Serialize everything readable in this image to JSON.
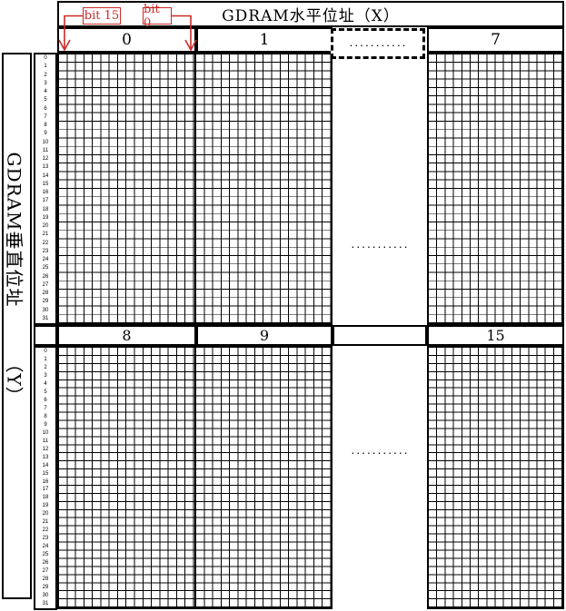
{
  "header": {
    "horizontal_title": "GDRAM水平位址（X）"
  },
  "left_label": {
    "main": "GDRAM垂直位址",
    "sub": "（Y）"
  },
  "annotations": {
    "bit15": "bit 15",
    "bit0": "bit 0",
    "color": "#cb2b28"
  },
  "top_band": {
    "col0": "0",
    "col1": "1",
    "ellipsis": "...........",
    "col7": "7"
  },
  "mid_band": {
    "col8": "8",
    "col9": "9",
    "ellipsis": "",
    "col15": "15"
  },
  "grid": {
    "ellipsis_top": "...........",
    "ellipsis_bottom": "...........",
    "rows_per_block": 32,
    "bits_per_address_column": 16,
    "row_numbers": [
      "0",
      "1",
      "2",
      "3",
      "4",
      "5",
      "6",
      "7",
      "8",
      "9",
      "10",
      "11",
      "12",
      "13",
      "14",
      "15",
      "16",
      "17",
      "18",
      "19",
      "20",
      "21",
      "22",
      "23",
      "24",
      "25",
      "26",
      "27",
      "28",
      "29",
      "30",
      "31"
    ]
  },
  "colors": {
    "line": "#000000",
    "background": "#ffffff",
    "annotation_red": "#cb2b28"
  }
}
